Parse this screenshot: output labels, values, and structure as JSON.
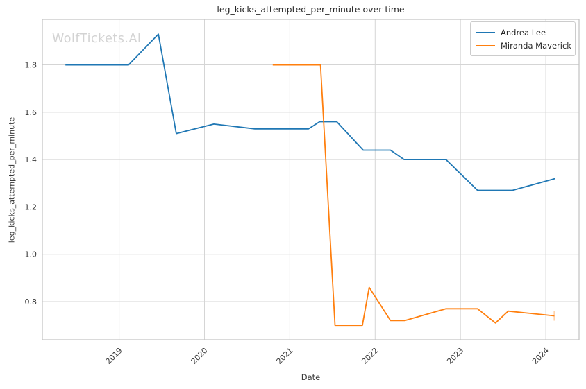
{
  "watermark": "WolfTickets.AI",
  "chart_data": {
    "type": "line",
    "title": "leg_kicks_attempted_per_minute over time",
    "xlabel": "Date",
    "ylabel": "leg_kicks_attempted_per_minute",
    "xlim": [
      2018.1,
      2024.39
    ],
    "ylim": [
      0.639,
      1.992
    ],
    "grid": true,
    "legend_position": "upper right",
    "xticks": {
      "values": [
        2019,
        2020,
        2021,
        2022,
        2023,
        2024
      ],
      "labels": [
        "2019",
        "2020",
        "2021",
        "2022",
        "2023",
        "2024"
      ]
    },
    "yticks": {
      "values": [
        0.8,
        1.0,
        1.2,
        1.4,
        1.6,
        1.8
      ],
      "labels": [
        "0.8",
        "1.0",
        "1.2",
        "1.4",
        "1.6",
        "1.8"
      ]
    },
    "colors": {
      "grid": "#d5d5d5",
      "spine": "#c2c2c2",
      "tick_text": "#3a3a3a",
      "title_text": "#262626",
      "watermark": "#d3d3d3",
      "andrea_lee": "#1f77b4",
      "miranda_maverick": "#ff7f0e"
    },
    "series": [
      {
        "name": "Andrea Lee",
        "color": "#1f77b4",
        "x": [
          2018.37,
          2019.11,
          2019.46,
          2019.67,
          2020.11,
          2020.59,
          2021.22,
          2021.35,
          2021.55,
          2021.86,
          2022.18,
          2022.34,
          2022.83,
          2023.2,
          2023.61,
          2024.11
        ],
        "y": [
          1.8,
          1.8,
          1.93,
          1.51,
          1.55,
          1.53,
          1.53,
          1.56,
          1.56,
          1.44,
          1.44,
          1.4,
          1.4,
          1.27,
          1.27,
          1.32
        ],
        "end_marker": "none"
      },
      {
        "name": "Miranda Maverick",
        "color": "#ff7f0e",
        "x": [
          2020.8,
          2021.36,
          2021.53,
          2021.85,
          2021.93,
          2022.18,
          2022.35,
          2022.83,
          2023.2,
          2023.41,
          2023.56,
          2024.1
        ],
        "y": [
          1.8,
          1.8,
          0.7,
          0.7,
          0.86,
          0.72,
          0.72,
          0.77,
          0.77,
          0.71,
          0.76,
          0.74
        ],
        "end_marker": "tick"
      }
    ]
  }
}
